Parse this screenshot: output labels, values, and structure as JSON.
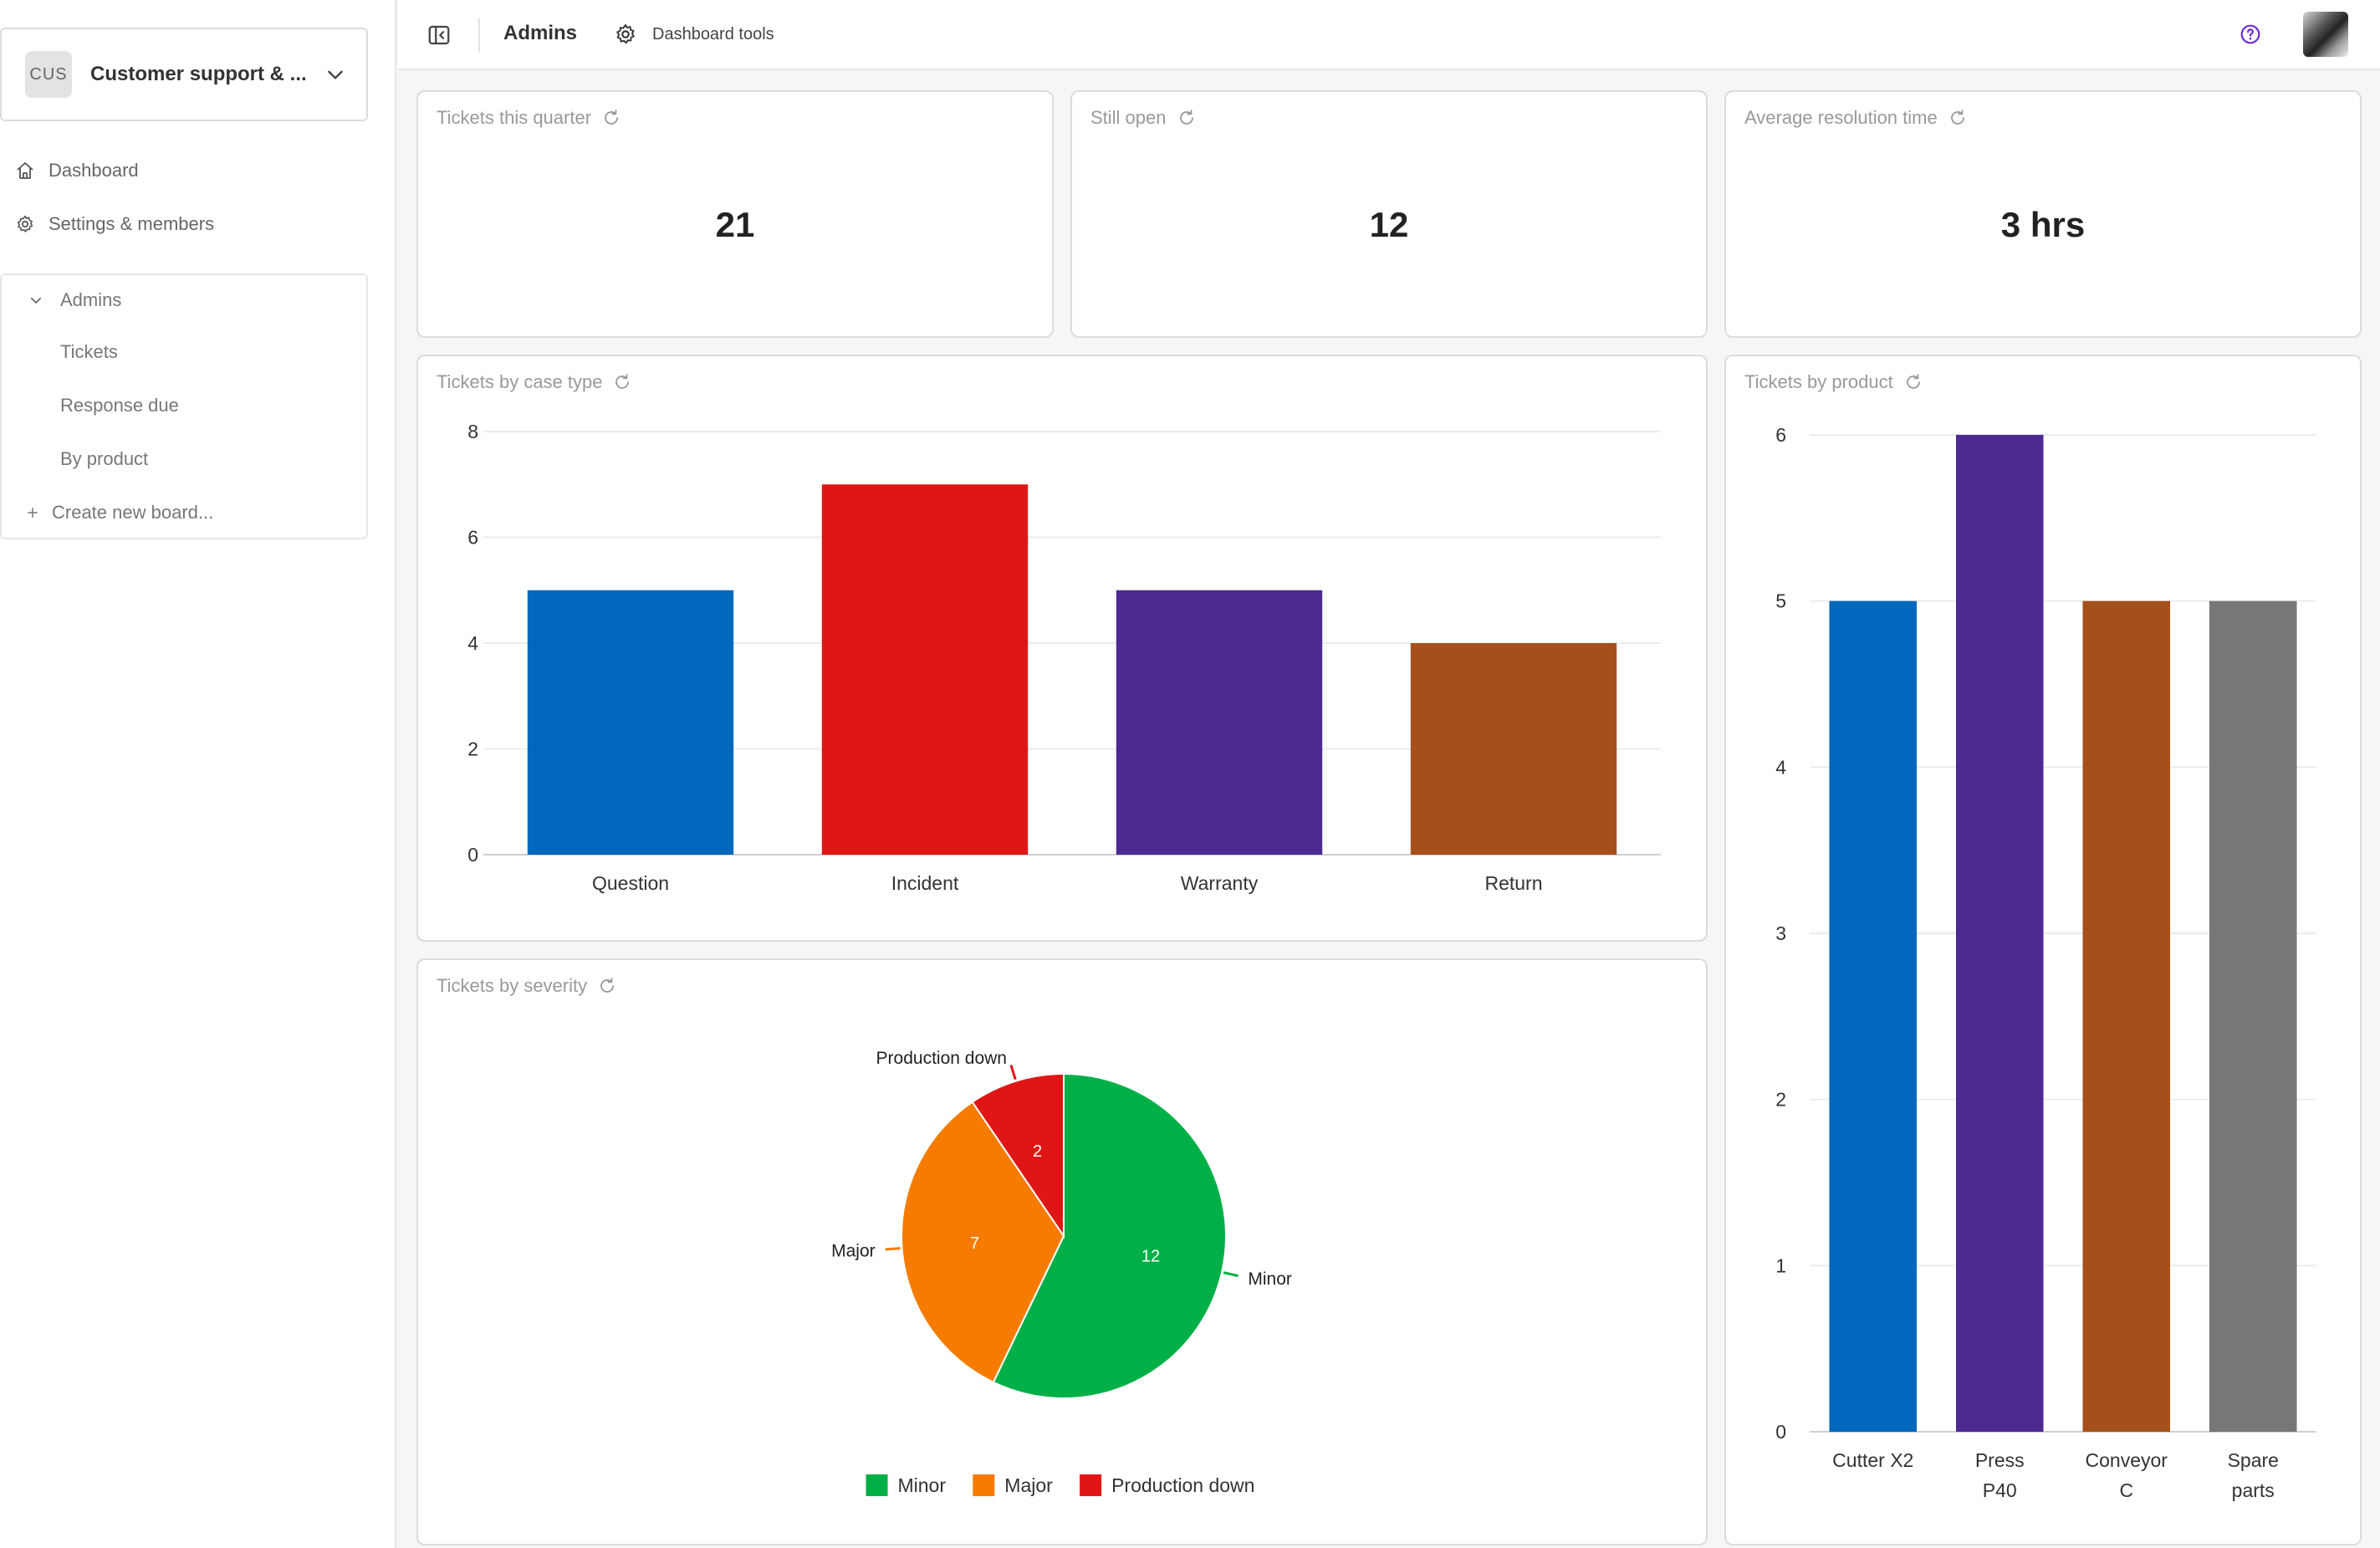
{
  "sidebar": {
    "workspace": {
      "badge": "CUS",
      "name": "Customer support & ..."
    },
    "nav": [
      {
        "label": "Dashboard",
        "icon": "home-icon"
      },
      {
        "label": "Settings & members",
        "icon": "gear-icon"
      }
    ],
    "board_group": {
      "label": "Admins",
      "items": [
        "Tickets",
        "Response due",
        "By product"
      ],
      "create_label": "Create new board..."
    }
  },
  "topbar": {
    "title": "Admins",
    "tools_label": "Dashboard tools"
  },
  "kpis": [
    {
      "title": "Tickets this quarter",
      "value": "21"
    },
    {
      "title": "Still open",
      "value": "12"
    },
    {
      "title": "Average resolution time",
      "value": "3 hrs"
    }
  ],
  "colors": {
    "blue": "#0068bd",
    "red": "#e01616",
    "purple": "#4c2a92",
    "brown": "#a5501a",
    "gray": "#777777",
    "green": "#00b047",
    "orange": "#f57c00",
    "help_icon": "#6d28d9"
  },
  "chart_data": [
    {
      "id": "case_type",
      "type": "bar",
      "title": "Tickets by case type",
      "categories": [
        "Question",
        "Incident",
        "Warranty",
        "Return"
      ],
      "values": [
        5,
        7,
        5,
        4
      ],
      "colors": [
        "#0068bd",
        "#e01616",
        "#4c2a92",
        "#a5501a"
      ],
      "yticks": [
        "0",
        "2",
        "4",
        "6",
        "8"
      ],
      "ylim": [
        0,
        8
      ],
      "grid": true
    },
    {
      "id": "product",
      "type": "bar",
      "title": "Tickets by product",
      "categories": [
        [
          "Cutter X2"
        ],
        [
          "Press",
          "P40"
        ],
        [
          "Conveyor",
          "C"
        ],
        [
          "Spare",
          "parts"
        ]
      ],
      "values": [
        5,
        6,
        5,
        5
      ],
      "colors": [
        "#0068bd",
        "#4c2a92",
        "#a5501a",
        "#777777"
      ],
      "yticks": [
        "0",
        "1",
        "2",
        "3",
        "4",
        "5",
        "6"
      ],
      "ylim": [
        0,
        6
      ],
      "grid": true
    },
    {
      "id": "severity",
      "type": "pie",
      "title": "Tickets by severity",
      "slices": [
        {
          "label": "Minor",
          "value": 12,
          "value_label": "12",
          "color": "#00b047"
        },
        {
          "label": "Major",
          "value": 7,
          "value_label": "7",
          "color": "#f57c00"
        },
        {
          "label": "Production down",
          "value": 2,
          "value_label": "2",
          "color": "#e01616"
        }
      ],
      "legend_position": "bottom"
    }
  ]
}
